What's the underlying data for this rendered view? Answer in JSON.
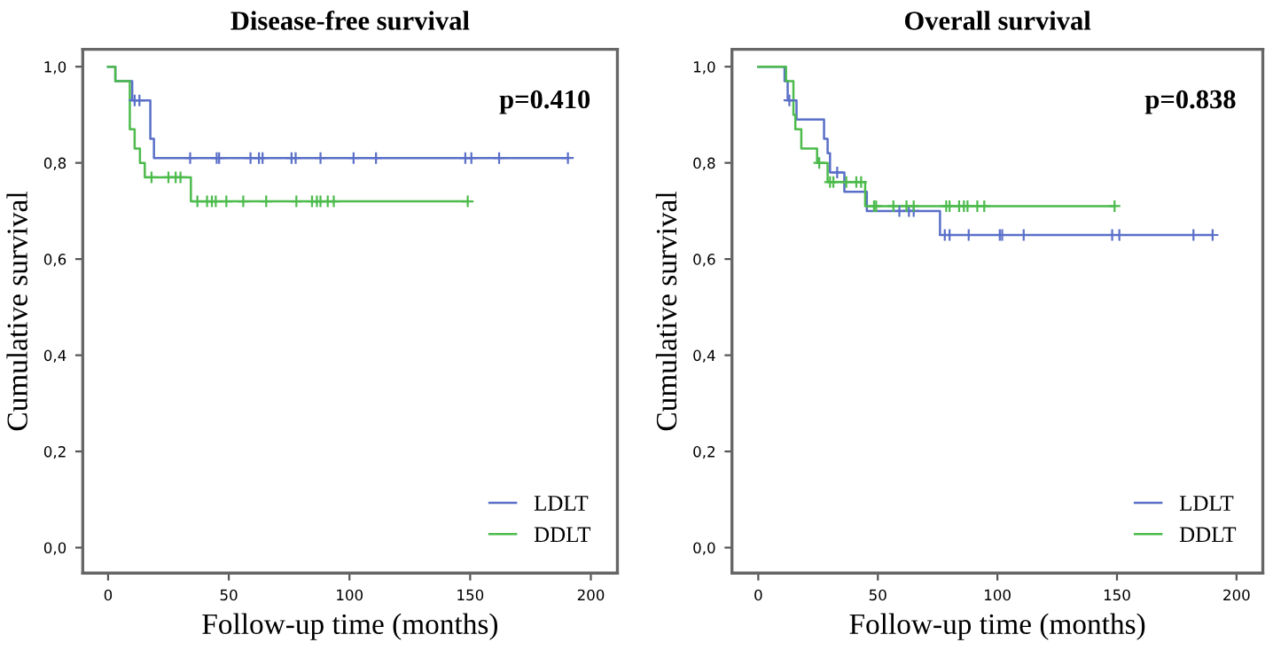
{
  "chart_data": [
    {
      "type": "step",
      "title": "Disease-free survival",
      "xlabel": "Follow-up time (months)",
      "ylabel": "Cumulative survival",
      "annotations": [
        "p=0.410"
      ],
      "xlim": [
        -10.5,
        211
      ],
      "ylim": [
        -0.053,
        1.036
      ],
      "xticks": [
        0,
        50,
        100,
        150,
        200
      ],
      "yticks": [
        {
          "value": 0,
          "label": "0,0"
        },
        {
          "value": 0.2,
          "label": "0,2"
        },
        {
          "value": 0.4,
          "label": "0,4"
        },
        {
          "value": 0.6,
          "label": "0,6"
        },
        {
          "value": 0.8,
          "label": "0,8"
        },
        {
          "value": 1,
          "label": "1,0"
        }
      ],
      "legend": "bottom right",
      "series": [
        {
          "name": "LDLT",
          "color": "#5a6fc8",
          "x": [
            0,
            3,
            10,
            17.5,
            19,
            190.5
          ],
          "values": [
            1.0,
            0.97,
            0.93,
            0.85,
            0.81,
            0.81
          ]
        },
        {
          "name": "DDLT",
          "color": "#4cbb4c",
          "x": [
            0,
            3,
            9,
            11,
            13.2,
            15.2,
            34.3,
            149
          ],
          "values": [
            1.0,
            0.97,
            0.87,
            0.83,
            0.8,
            0.77,
            0.72,
            0.72
          ]
        },
        {
          "type": "scatter",
          "marker": "cross",
          "color": "#5a6fc8",
          "x": [
            11,
            13,
            34,
            45,
            46,
            59,
            62.5,
            64,
            76,
            77.7,
            88,
            101.7,
            111,
            148,
            150.5,
            162,
            190.5
          ],
          "values": [
            0.93,
            0.93,
            0.81,
            0.81,
            0.81,
            0.81,
            0.81,
            0.81,
            0.81,
            0.81,
            0.81,
            0.81,
            0.81,
            0.81,
            0.81,
            0.81,
            0.81
          ]
        },
        {
          "type": "scatter",
          "marker": "cross",
          "color": "#4cbb4c",
          "x": [
            18,
            25,
            28,
            30,
            37,
            41,
            43,
            44.6,
            49,
            56,
            65.5,
            78,
            84.5,
            86.5,
            88,
            91,
            93.5,
            149
          ],
          "values": [
            0.77,
            0.77,
            0.77,
            0.77,
            0.72,
            0.72,
            0.72,
            0.72,
            0.72,
            0.72,
            0.72,
            0.72,
            0.72,
            0.72,
            0.72,
            0.72,
            0.72,
            0.72
          ]
        }
      ]
    },
    {
      "type": "step",
      "title": "Overall survival",
      "xlabel": "Follow-up time (months)",
      "ylabel": "Cumulative survival",
      "annotations": [
        "p=0.838"
      ],
      "xlim": [
        -11,
        211
      ],
      "ylim": [
        -0.053,
        1.036
      ],
      "xticks": [
        0,
        50,
        100,
        150,
        200
      ],
      "yticks": [
        {
          "value": 0,
          "label": "0,0"
        },
        {
          "value": 0.2,
          "label": "0,2"
        },
        {
          "value": 0.4,
          "label": "0,4"
        },
        {
          "value": 0.6,
          "label": "0,6"
        },
        {
          "value": 0.8,
          "label": "0,8"
        },
        {
          "value": 1,
          "label": "1,0"
        }
      ],
      "legend": "bottom right",
      "series": [
        {
          "name": "LDLT",
          "color": "#5a6fc8",
          "x": [
            0,
            11,
            12.3,
            16,
            27.5,
            29,
            30,
            36,
            45.4,
            76,
            190
          ],
          "values": [
            1.0,
            0.97,
            0.93,
            0.89,
            0.85,
            0.82,
            0.78,
            0.74,
            0.7,
            0.65,
            0.65
          ]
        },
        {
          "name": "DDLT",
          "color": "#4cbb4c",
          "x": [
            0,
            11.6,
            14.7,
            15.5,
            18,
            24.6,
            29,
            44.7,
            149
          ],
          "values": [
            1.0,
            0.97,
            0.9,
            0.87,
            0.83,
            0.8,
            0.76,
            0.71,
            0.71
          ]
        },
        {
          "type": "scatter",
          "marker": "cross",
          "color": "#5a6fc8",
          "x": [
            13,
            33,
            59,
            63,
            65,
            78,
            80,
            88,
            101,
            102,
            111,
            148,
            151,
            182,
            190
          ],
          "values": [
            0.93,
            0.78,
            0.7,
            0.7,
            0.7,
            0.65,
            0.65,
            0.65,
            0.65,
            0.65,
            0.65,
            0.65,
            0.65,
            0.65,
            0.65
          ]
        },
        {
          "type": "scatter",
          "marker": "cross",
          "color": "#4cbb4c",
          "x": [
            25.5,
            30,
            31.4,
            36.8,
            41,
            43,
            48.4,
            49.3,
            56.5,
            62,
            65,
            78.6,
            80,
            84,
            86,
            87.5,
            91.6,
            94.5,
            149
          ],
          "values": [
            0.8,
            0.76,
            0.76,
            0.76,
            0.76,
            0.76,
            0.71,
            0.71,
            0.71,
            0.71,
            0.71,
            0.71,
            0.71,
            0.71,
            0.71,
            0.71,
            0.71,
            0.71,
            0.71
          ]
        }
      ]
    }
  ]
}
